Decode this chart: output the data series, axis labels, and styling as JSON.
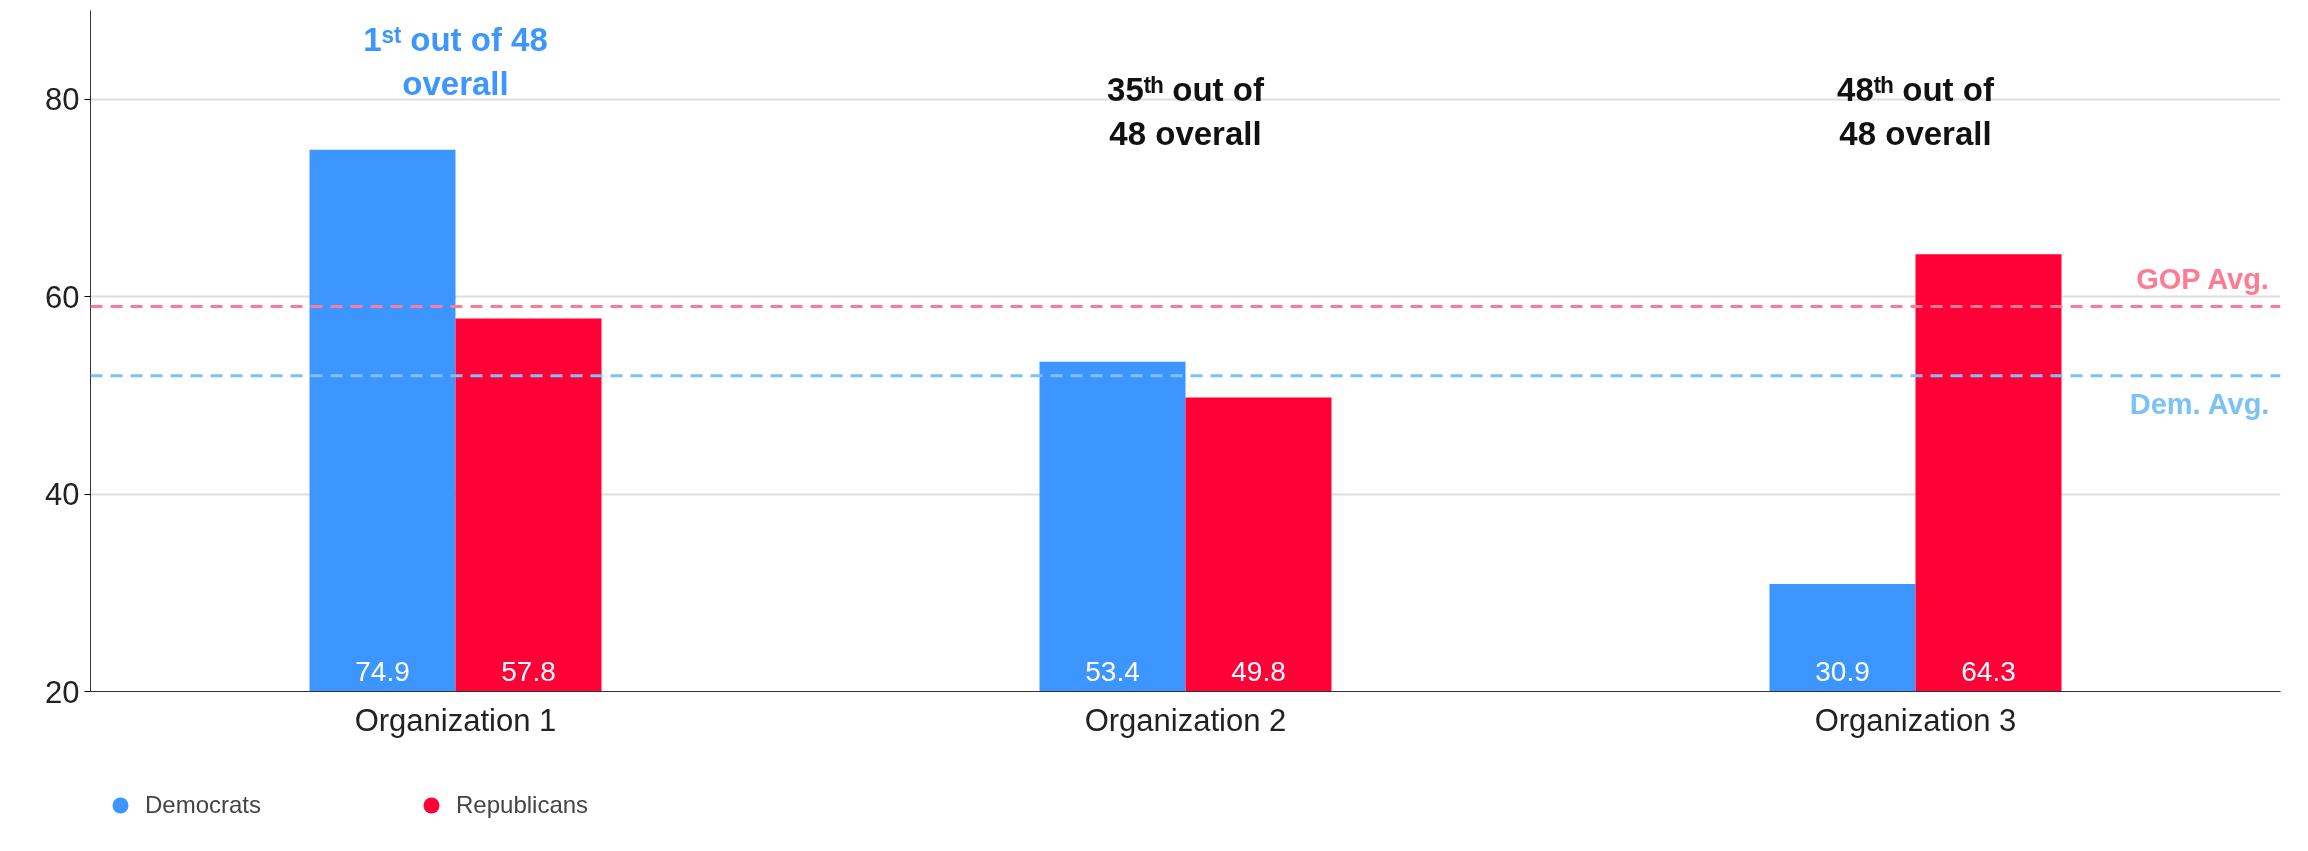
{
  "chart_data": {
    "type": "bar",
    "categories": [
      "Organization 1",
      "Organization 2",
      "Organization 3"
    ],
    "series": [
      {
        "name": "Democrats",
        "color": "#3d95ff",
        "values": [
          74.9,
          53.4,
          30.9
        ]
      },
      {
        "name": "Republicans",
        "color": "#ff0037",
        "values": [
          57.8,
          49.8,
          64.3
        ]
      }
    ],
    "ylim": [
      20,
      89
    ],
    "yticks": [
      20,
      40,
      60,
      80
    ],
    "grid": "y",
    "data_labels": true,
    "legend": "bottom left",
    "ref_lines": [
      {
        "axis": "y",
        "value": 59,
        "label": "GOP Avg.",
        "color": "#ff7b95",
        "line_style": "dashed"
      },
      {
        "axis": "y",
        "value": 52,
        "label": "Dem. Avg.",
        "color": "#7cc2f5",
        "line_style": "dashed"
      }
    ],
    "annotations": [
      "1ˢᵗ out of 48\noverall",
      "35ᵗʰ out of\n48 overall",
      "48ᵗʰ out of\n48 overall"
    ]
  }
}
